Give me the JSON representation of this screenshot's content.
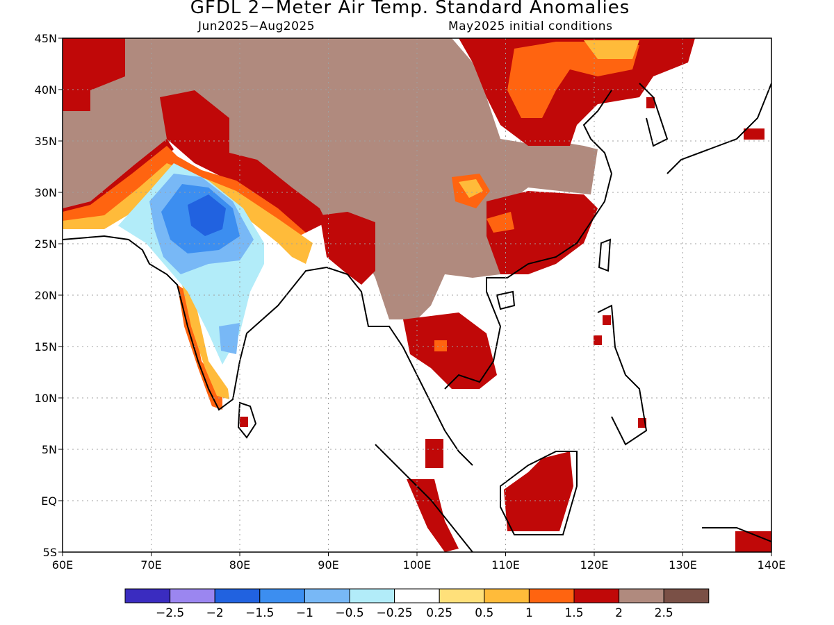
{
  "header": {
    "title": "GFDL 2−Meter Air Temp. Standard Anomalies",
    "period": "Jun2025−Aug2025",
    "init": "May2025 initial conditions"
  },
  "map": {
    "lon_range": [
      60,
      140
    ],
    "lat_range": [
      -5,
      45
    ],
    "lon_ticks": [
      "60E",
      "70E",
      "80E",
      "90E",
      "100E",
      "110E",
      "120E",
      "130E",
      "140E"
    ],
    "lat_ticks": [
      "45N",
      "40N",
      "35N",
      "30N",
      "25N",
      "20N",
      "15N",
      "10N",
      "5N",
      "EQ",
      "5S"
    ]
  },
  "colorbar": {
    "colors": [
      "#3a2cc0",
      "#9b86f0",
      "#2162e0",
      "#3c8ef0",
      "#78b8f6",
      "#b2ecf9",
      "#ffffff",
      "#ffe07a",
      "#ffbb3a",
      "#ff6410",
      "#c00808",
      "#b08a7e",
      "#7a5046"
    ],
    "labels": [
      "−2.5",
      "−2",
      "−1.5",
      "−1",
      "−0.5",
      "−0.25",
      "0.25",
      "0.5",
      "1",
      "1.5",
      "2",
      "2.5"
    ]
  }
}
